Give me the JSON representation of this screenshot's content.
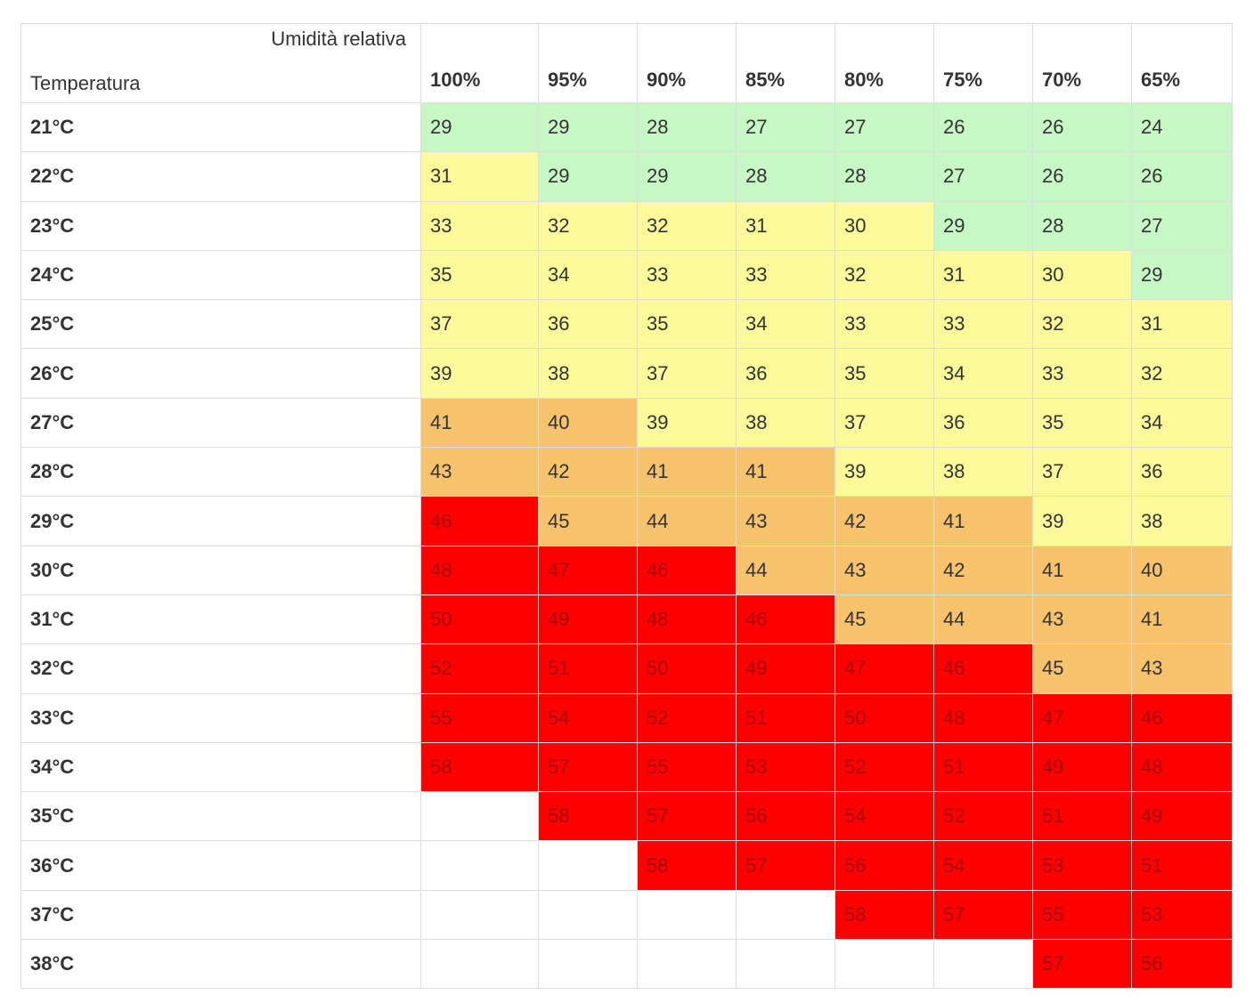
{
  "header": {
    "humidity_label": "Umidità relativa",
    "temperature_label": "Temperatura"
  },
  "colors": {
    "green": "#c6f7c4",
    "yellow": "#fcf99b",
    "orange": "#f7c26c",
    "red": "#fe0000",
    "empty": "#ffffff"
  },
  "chart_data": {
    "type": "table",
    "columns": [
      "100%",
      "95%",
      "90%",
      "85%",
      "80%",
      "75%",
      "70%",
      "65%"
    ],
    "rows": [
      {
        "label": "21°C",
        "values": [
          29,
          29,
          28,
          27,
          27,
          26,
          26,
          24
        ],
        "bands": [
          "green",
          "green",
          "green",
          "green",
          "green",
          "green",
          "green",
          "green"
        ]
      },
      {
        "label": "22°C",
        "values": [
          31,
          29,
          29,
          28,
          28,
          27,
          26,
          26
        ],
        "bands": [
          "yellow",
          "green",
          "green",
          "green",
          "green",
          "green",
          "green",
          "green"
        ]
      },
      {
        "label": "23°C",
        "values": [
          33,
          32,
          32,
          31,
          30,
          29,
          28,
          27
        ],
        "bands": [
          "yellow",
          "yellow",
          "yellow",
          "yellow",
          "yellow",
          "green",
          "green",
          "green"
        ]
      },
      {
        "label": "24°C",
        "values": [
          35,
          34,
          33,
          33,
          32,
          31,
          30,
          29
        ],
        "bands": [
          "yellow",
          "yellow",
          "yellow",
          "yellow",
          "yellow",
          "yellow",
          "yellow",
          "green"
        ]
      },
      {
        "label": "25°C",
        "values": [
          37,
          36,
          35,
          34,
          33,
          33,
          32,
          31
        ],
        "bands": [
          "yellow",
          "yellow",
          "yellow",
          "yellow",
          "yellow",
          "yellow",
          "yellow",
          "yellow"
        ]
      },
      {
        "label": "26°C",
        "values": [
          39,
          38,
          37,
          36,
          35,
          34,
          33,
          32
        ],
        "bands": [
          "yellow",
          "yellow",
          "yellow",
          "yellow",
          "yellow",
          "yellow",
          "yellow",
          "yellow"
        ]
      },
      {
        "label": "27°C",
        "values": [
          41,
          40,
          39,
          38,
          37,
          36,
          35,
          34
        ],
        "bands": [
          "orange",
          "orange",
          "yellow",
          "yellow",
          "yellow",
          "yellow",
          "yellow",
          "yellow"
        ]
      },
      {
        "label": "28°C",
        "values": [
          43,
          42,
          41,
          41,
          39,
          38,
          37,
          36
        ],
        "bands": [
          "orange",
          "orange",
          "orange",
          "orange",
          "yellow",
          "yellow",
          "yellow",
          "yellow"
        ]
      },
      {
        "label": "29°C",
        "values": [
          46,
          45,
          44,
          43,
          42,
          41,
          39,
          38
        ],
        "bands": [
          "red",
          "orange",
          "orange",
          "orange",
          "orange",
          "orange",
          "yellow",
          "yellow"
        ]
      },
      {
        "label": "30°C",
        "values": [
          48,
          47,
          46,
          44,
          43,
          42,
          41,
          40
        ],
        "bands": [
          "red",
          "red",
          "red",
          "orange",
          "orange",
          "orange",
          "orange",
          "orange"
        ]
      },
      {
        "label": "31°C",
        "values": [
          50,
          49,
          48,
          46,
          45,
          44,
          43,
          41
        ],
        "bands": [
          "red",
          "red",
          "red",
          "red",
          "orange",
          "orange",
          "orange",
          "orange"
        ]
      },
      {
        "label": "32°C",
        "values": [
          52,
          51,
          50,
          49,
          47,
          46,
          45,
          43
        ],
        "bands": [
          "red",
          "red",
          "red",
          "red",
          "red",
          "red",
          "orange",
          "orange"
        ]
      },
      {
        "label": "33°C",
        "values": [
          55,
          54,
          52,
          51,
          50,
          48,
          47,
          46
        ],
        "bands": [
          "red",
          "red",
          "red",
          "red",
          "red",
          "red",
          "red",
          "red"
        ]
      },
      {
        "label": "34°C",
        "values": [
          58,
          57,
          55,
          53,
          52,
          51,
          49,
          48
        ],
        "bands": [
          "red",
          "red",
          "red",
          "red",
          "red",
          "red",
          "red",
          "red"
        ]
      },
      {
        "label": "35°C",
        "values": [
          null,
          58,
          57,
          56,
          54,
          52,
          51,
          49
        ],
        "bands": [
          "empty",
          "red",
          "red",
          "red",
          "red",
          "red",
          "red",
          "red"
        ]
      },
      {
        "label": "36°C",
        "values": [
          null,
          null,
          58,
          57,
          56,
          54,
          53,
          51
        ],
        "bands": [
          "empty",
          "empty",
          "red",
          "red",
          "red",
          "red",
          "red",
          "red"
        ]
      },
      {
        "label": "37°C",
        "values": [
          null,
          null,
          null,
          null,
          58,
          57,
          55,
          53
        ],
        "bands": [
          "empty",
          "empty",
          "empty",
          "empty",
          "red",
          "red",
          "red",
          "red"
        ]
      },
      {
        "label": "38°C",
        "values": [
          null,
          null,
          null,
          null,
          null,
          null,
          57,
          56
        ],
        "bands": [
          "empty",
          "empty",
          "empty",
          "empty",
          "empty",
          "empty",
          "red",
          "red"
        ]
      }
    ]
  }
}
